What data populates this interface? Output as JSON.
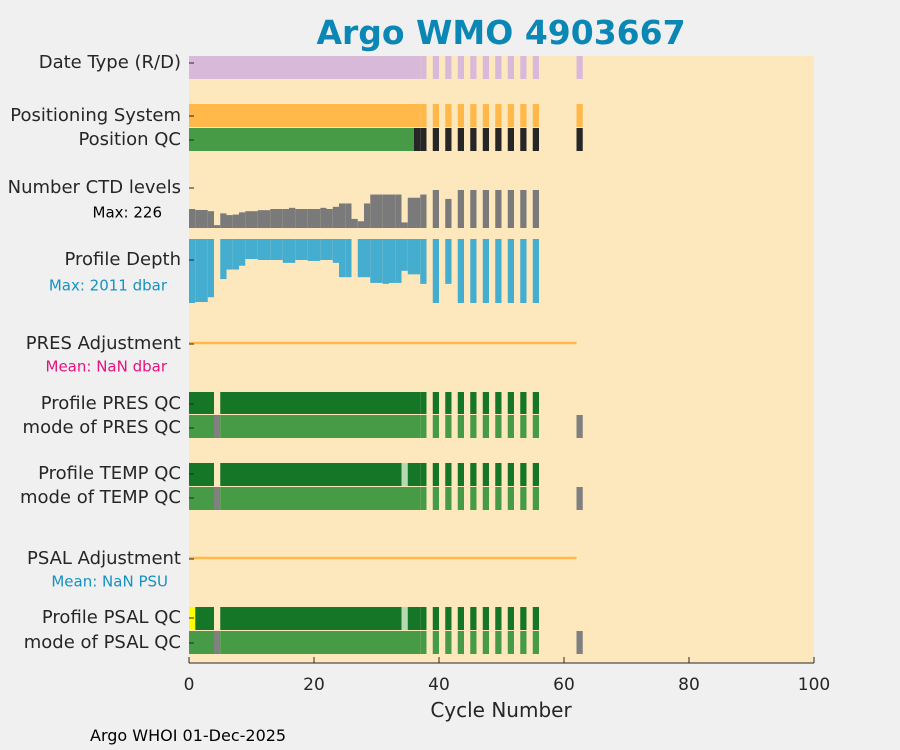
{
  "chart_data": {
    "type": "bar",
    "title": "Argo WMO 4903667",
    "xlabel": "Cycle Number",
    "xlim": [
      0,
      100
    ],
    "xticks": [
      0,
      20,
      40,
      60,
      80,
      100
    ],
    "xtick_labels": [
      "0",
      "20",
      "40",
      "60",
      "80",
      "100"
    ],
    "footer": "Argo WHOI 01-Dec-2025",
    "rows": [
      {
        "key": "date_type",
        "label": "Date Type (R/D)"
      },
      {
        "key": "positioning_system",
        "label": "Positioning System"
      },
      {
        "key": "position_qc",
        "label": "Position QC"
      },
      {
        "key": "ctd_levels",
        "label": "Number CTD levels",
        "annotation": "Max: 226"
      },
      {
        "key": "profile_depth",
        "label": "Profile Depth",
        "annotation": "Max: 2011 dbar"
      },
      {
        "key": "pres_adjustment",
        "label": "PRES Adjustment",
        "annotation": "Mean:  NaN dbar"
      },
      {
        "key": "profile_pres_qc",
        "label": "Profile PRES QC"
      },
      {
        "key": "mode_pres_qc",
        "label": "mode of PRES QC"
      },
      {
        "key": "profile_temp_qc",
        "label": "Profile TEMP QC"
      },
      {
        "key": "mode_temp_qc",
        "label": "mode of TEMP QC"
      },
      {
        "key": "psal_adjustment",
        "label": "PSAL Adjustment",
        "annotation": "Mean:  NaN PSU"
      },
      {
        "key": "profile_psal_qc",
        "label": "Profile PSAL QC"
      },
      {
        "key": "mode_psal_qc",
        "label": "mode of PSAL QC"
      }
    ],
    "status_series": {
      "date_type": [
        [
          0,
          36,
          "lavender"
        ],
        [
          37,
          37,
          "lavender"
        ],
        [
          39,
          39,
          "lavender"
        ],
        [
          41,
          41,
          "lavender"
        ],
        [
          43,
          43,
          "lavender"
        ],
        [
          45,
          45,
          "lavender"
        ],
        [
          47,
          47,
          "lavender"
        ],
        [
          49,
          49,
          "lavender"
        ],
        [
          51,
          51,
          "lavender"
        ],
        [
          53,
          53,
          "lavender"
        ],
        [
          55,
          55,
          "lavender"
        ],
        [
          62,
          62,
          "lavender"
        ]
      ],
      "positioning_system": [
        [
          0,
          36,
          "orange"
        ],
        [
          37,
          37,
          "orange"
        ],
        [
          39,
          39,
          "orange"
        ],
        [
          41,
          41,
          "orange"
        ],
        [
          43,
          43,
          "orange"
        ],
        [
          45,
          45,
          "orange"
        ],
        [
          47,
          47,
          "orange"
        ],
        [
          49,
          49,
          "orange"
        ],
        [
          51,
          51,
          "orange"
        ],
        [
          53,
          53,
          "orange"
        ],
        [
          55,
          55,
          "orange"
        ],
        [
          62,
          62,
          "orange"
        ]
      ],
      "position_qc": [
        [
          0,
          35,
          "green"
        ],
        [
          36,
          36,
          "black"
        ],
        [
          37,
          37,
          "black"
        ],
        [
          39,
          39,
          "black"
        ],
        [
          41,
          41,
          "black"
        ],
        [
          43,
          43,
          "black"
        ],
        [
          45,
          45,
          "black"
        ],
        [
          47,
          47,
          "black"
        ],
        [
          49,
          49,
          "black"
        ],
        [
          51,
          51,
          "black"
        ],
        [
          53,
          53,
          "black"
        ],
        [
          55,
          55,
          "black"
        ],
        [
          62,
          62,
          "black"
        ]
      ],
      "profile_pres_qc": [
        [
          0,
          3,
          "dark_green"
        ],
        [
          5,
          36,
          "dark_green"
        ],
        [
          37,
          37,
          "dark_green"
        ],
        [
          39,
          39,
          "dark_green"
        ],
        [
          41,
          41,
          "dark_green"
        ],
        [
          43,
          43,
          "dark_green"
        ],
        [
          45,
          45,
          "dark_green"
        ],
        [
          47,
          47,
          "dark_green"
        ],
        [
          49,
          49,
          "dark_green"
        ],
        [
          51,
          51,
          "dark_green"
        ],
        [
          53,
          53,
          "dark_green"
        ],
        [
          55,
          55,
          "dark_green"
        ]
      ],
      "mode_pres_qc": [
        [
          0,
          3,
          "green"
        ],
        [
          4,
          4,
          "gray"
        ],
        [
          5,
          36,
          "green"
        ],
        [
          37,
          37,
          "green"
        ],
        [
          39,
          39,
          "green"
        ],
        [
          41,
          41,
          "green"
        ],
        [
          43,
          43,
          "green"
        ],
        [
          45,
          45,
          "green"
        ],
        [
          47,
          47,
          "green"
        ],
        [
          49,
          49,
          "green"
        ],
        [
          51,
          51,
          "green"
        ],
        [
          53,
          53,
          "green"
        ],
        [
          55,
          55,
          "green"
        ],
        [
          62,
          62,
          "gray"
        ]
      ],
      "profile_temp_qc": [
        [
          0,
          3,
          "dark_green"
        ],
        [
          5,
          33,
          "dark_green"
        ],
        [
          34,
          34,
          "light_green"
        ],
        [
          35,
          36,
          "dark_green"
        ],
        [
          37,
          37,
          "dark_green"
        ],
        [
          39,
          39,
          "dark_green"
        ],
        [
          41,
          41,
          "dark_green"
        ],
        [
          43,
          43,
          "dark_green"
        ],
        [
          45,
          45,
          "dark_green"
        ],
        [
          47,
          47,
          "dark_green"
        ],
        [
          49,
          49,
          "dark_green"
        ],
        [
          51,
          51,
          "dark_green"
        ],
        [
          53,
          53,
          "dark_green"
        ],
        [
          55,
          55,
          "dark_green"
        ]
      ],
      "mode_temp_qc": [
        [
          0,
          3,
          "green"
        ],
        [
          4,
          4,
          "gray"
        ],
        [
          5,
          36,
          "green"
        ],
        [
          37,
          37,
          "green"
        ],
        [
          39,
          39,
          "green"
        ],
        [
          41,
          41,
          "green"
        ],
        [
          43,
          43,
          "green"
        ],
        [
          45,
          45,
          "green"
        ],
        [
          47,
          47,
          "green"
        ],
        [
          49,
          49,
          "green"
        ],
        [
          51,
          51,
          "green"
        ],
        [
          53,
          53,
          "green"
        ],
        [
          55,
          55,
          "green"
        ],
        [
          62,
          62,
          "gray"
        ]
      ],
      "profile_psal_qc": [
        [
          0,
          0,
          "yellow"
        ],
        [
          1,
          3,
          "dark_green"
        ],
        [
          5,
          33,
          "dark_green"
        ],
        [
          34,
          34,
          "light_green"
        ],
        [
          35,
          36,
          "dark_green"
        ],
        [
          37,
          37,
          "dark_green"
        ],
        [
          39,
          39,
          "dark_green"
        ],
        [
          41,
          41,
          "dark_green"
        ],
        [
          43,
          43,
          "dark_green"
        ],
        [
          45,
          45,
          "dark_green"
        ],
        [
          47,
          47,
          "dark_green"
        ],
        [
          49,
          49,
          "dark_green"
        ],
        [
          51,
          51,
          "dark_green"
        ],
        [
          53,
          53,
          "dark_green"
        ],
        [
          55,
          55,
          "dark_green"
        ]
      ],
      "mode_psal_qc": [
        [
          0,
          3,
          "green"
        ],
        [
          4,
          4,
          "gray"
        ],
        [
          5,
          36,
          "green"
        ],
        [
          37,
          37,
          "green"
        ],
        [
          39,
          39,
          "green"
        ],
        [
          41,
          41,
          "green"
        ],
        [
          43,
          43,
          "green"
        ],
        [
          45,
          45,
          "green"
        ],
        [
          47,
          47,
          "green"
        ],
        [
          49,
          49,
          "green"
        ],
        [
          51,
          51,
          "green"
        ],
        [
          53,
          53,
          "green"
        ],
        [
          55,
          55,
          "green"
        ],
        [
          62,
          62,
          "gray"
        ]
      ]
    },
    "ctd_levels": {
      "max": 226,
      "cycles": [
        0,
        1,
        2,
        3,
        4,
        5,
        6,
        7,
        8,
        9,
        10,
        11,
        12,
        13,
        14,
        15,
        16,
        17,
        18,
        19,
        20,
        21,
        22,
        23,
        24,
        25,
        26,
        27,
        28,
        29,
        30,
        31,
        32,
        33,
        34,
        35,
        36,
        37,
        39,
        41,
        43,
        45,
        47,
        49,
        51,
        53,
        55
      ],
      "values": [
        113,
        107,
        107,
        100,
        17,
        87,
        77,
        80,
        93,
        100,
        100,
        106,
        106,
        113,
        113,
        113,
        120,
        113,
        113,
        113,
        113,
        120,
        113,
        126,
        146,
        146,
        54,
        40,
        146,
        199,
        199,
        199,
        199,
        199,
        33,
        180,
        180,
        199,
        226,
        173,
        226,
        226,
        226,
        226,
        226,
        226,
        226
      ]
    },
    "profile_depth": {
      "max_dbar": 2011,
      "cycles": [
        0,
        1,
        2,
        3,
        4,
        5,
        6,
        7,
        8,
        9,
        10,
        11,
        12,
        13,
        14,
        15,
        16,
        17,
        18,
        19,
        20,
        21,
        22,
        23,
        24,
        25,
        26,
        27,
        28,
        29,
        30,
        31,
        32,
        33,
        34,
        35,
        36,
        37,
        39,
        41,
        43,
        45,
        47,
        49,
        51,
        53,
        55
      ],
      "values": [
        2011,
        1980,
        1980,
        1830,
        0,
        1260,
        960,
        960,
        840,
        630,
        630,
        660,
        660,
        660,
        660,
        750,
        750,
        660,
        660,
        690,
        690,
        660,
        660,
        750,
        1200,
        1200,
        0,
        1200,
        1200,
        1380,
        1380,
        1410,
        1380,
        1380,
        1000,
        1110,
        1110,
        1410,
        2011,
        1410,
        2011,
        2011,
        2011,
        2011,
        2011,
        2011,
        2011
      ]
    },
    "adjustment_lines": {
      "pres_adjustment": {
        "from_cycle": 0,
        "to_cycle": 62,
        "color": "orange"
      },
      "psal_adjustment": {
        "from_cycle": 0,
        "to_cycle": 62,
        "color": "orange"
      }
    },
    "colors": {
      "background": "#fde8be",
      "figure": "#f0f0f0",
      "title": "#0a87b5",
      "lavender": "#d9b9d9",
      "orange": "#ffb849",
      "green": "#479b47",
      "dark_green": "#167627",
      "light_green": "#b4d9b4",
      "black": "#262626",
      "gray": "#808080",
      "yellow": "#ffff00",
      "ctd_bar": "#7a7a7a",
      "depth_bar": "#45adcf",
      "annotation_default": "#000000",
      "annotation_blue": "#1592c2",
      "annotation_magenta": "#e4117f",
      "annotation_psal": "#1592c2"
    }
  }
}
